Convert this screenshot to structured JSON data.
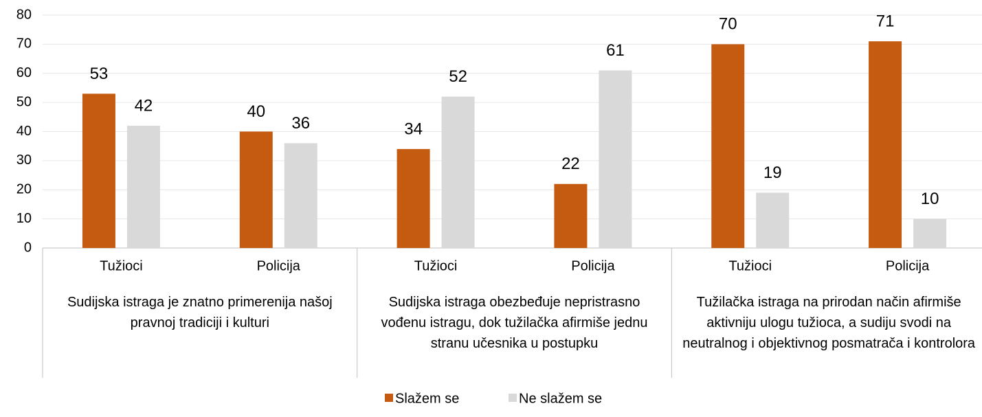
{
  "chart_data": {
    "type": "bar",
    "categories": [
      "Tužioci",
      "Policija",
      "Tužioci",
      "Policija",
      "Tužioci",
      "Policija"
    ],
    "groups": [
      "Sudijska istraga je znatno primerenija našoj pravnoj tradiciji i kulturi",
      "Sudijska istraga obezbeđuje nepristrasno vođenu istragu, dok tužilačka afirmiše jednu stranu učesnika u postupku",
      "Tužilačka istraga na prirodan način afirmiše aktivniju ulogu tužioca, a sudiju svodi na neutralnog i objektivnog posmatrača i kontrolora"
    ],
    "series": [
      {
        "name": "Slažem se",
        "color": "#c55a11",
        "values": [
          53,
          40,
          34,
          22,
          70,
          71
        ]
      },
      {
        "name": "Ne slažem se",
        "color": "#d9d9d9",
        "values": [
          42,
          36,
          52,
          61,
          19,
          10
        ]
      }
    ],
    "ylim": [
      0,
      80
    ],
    "yticks": [
      0,
      10,
      20,
      30,
      40,
      50,
      60,
      70,
      80
    ],
    "grid": true,
    "legend": "bottom"
  }
}
